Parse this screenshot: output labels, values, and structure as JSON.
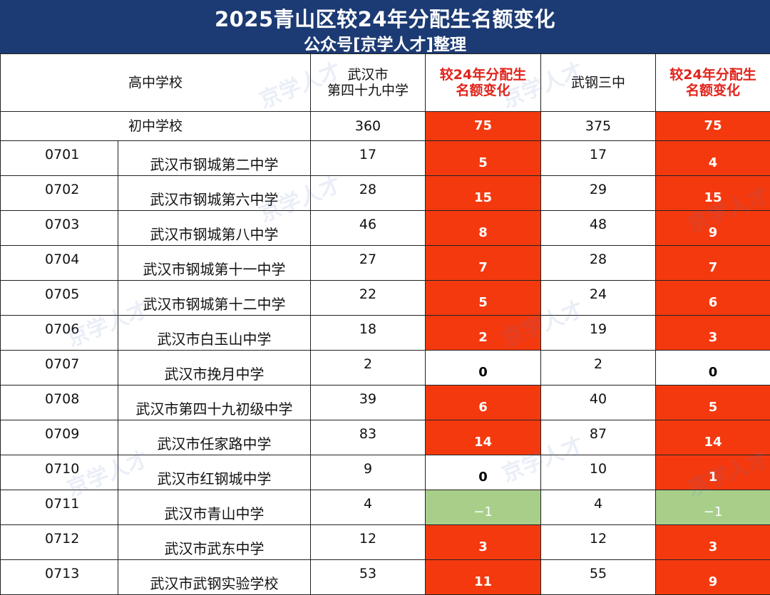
{
  "title": "2025青山区较24年分配生名额变化",
  "subtitle": "公众号[京学人才]整理",
  "watermark": "京学人才",
  "colors": {
    "header_bg": "#1c3a73",
    "increase": "#f4390f",
    "decrease": "#a8cf8a",
    "header_red": "#e0241b"
  },
  "headers": {
    "school": "高中学校",
    "hs1": "武汉市\n第四十九中学",
    "change1": "较24年分配生\n名额变化",
    "hs2": "武钢三中",
    "change2": "较24年分配生\n名额变化"
  },
  "total": {
    "label": "初中学校",
    "hs1": "360",
    "change1": "75",
    "hs2": "375",
    "change2": "75"
  },
  "rows": [
    {
      "code": "0701",
      "name": "武汉市钢城第二中学",
      "hs1": "17",
      "change1": "5",
      "hs2": "17",
      "change2": "4"
    },
    {
      "code": "0702",
      "name": "武汉市钢城第六中学",
      "hs1": "28",
      "change1": "15",
      "hs2": "29",
      "change2": "15"
    },
    {
      "code": "0703",
      "name": "武汉市钢城第八中学",
      "hs1": "46",
      "change1": "8",
      "hs2": "48",
      "change2": "9"
    },
    {
      "code": "0704",
      "name": "武汉市钢城第十一中学",
      "hs1": "27",
      "change1": "7",
      "hs2": "28",
      "change2": "7"
    },
    {
      "code": "0705",
      "name": "武汉市钢城第十二中学",
      "hs1": "22",
      "change1": "5",
      "hs2": "24",
      "change2": "6"
    },
    {
      "code": "0706",
      "name": "武汉市白玉山中学",
      "hs1": "18",
      "change1": "2",
      "hs2": "19",
      "change2": "3"
    },
    {
      "code": "0707",
      "name": "武汉市挽月中学",
      "hs1": "2",
      "change1": "0",
      "hs2": "2",
      "change2": "0"
    },
    {
      "code": "0708",
      "name": "武汉市第四十九初级中学",
      "hs1": "39",
      "change1": "6",
      "hs2": "40",
      "change2": "5"
    },
    {
      "code": "0709",
      "name": "武汉市任家路中学",
      "hs1": "83",
      "change1": "14",
      "hs2": "87",
      "change2": "14"
    },
    {
      "code": "0710",
      "name": "武汉市红钢城中学",
      "hs1": "9",
      "change1": "0",
      "hs2": "10",
      "change2": "1"
    },
    {
      "code": "0711",
      "name": "武汉市青山中学",
      "hs1": "4",
      "change1": "−1",
      "hs2": "4",
      "change2": "−1"
    },
    {
      "code": "0712",
      "name": "武汉市武东中学",
      "hs1": "12",
      "change1": "3",
      "hs2": "12",
      "change2": "3"
    },
    {
      "code": "0713",
      "name": "武汉市武钢实验学校",
      "hs1": "53",
      "change1": "11",
      "hs2": "55",
      "change2": "9"
    }
  ]
}
